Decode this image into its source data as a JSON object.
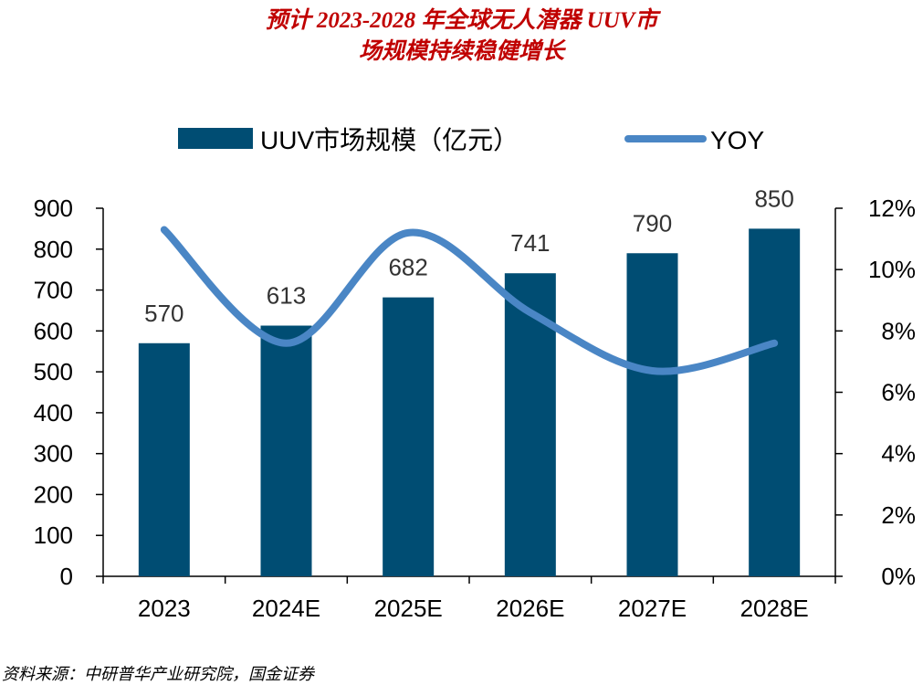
{
  "title": {
    "line1": "预计 2023-2028 年全球无人潜器 UUV市",
    "line2": "场规模持续稳健增长"
  },
  "colors": {
    "bar": "#004d73",
    "line": "#4a86c5",
    "title": "#c00000",
    "axis": "#000000"
  },
  "chart_data": {
    "type": "bar+line",
    "categories": [
      "2023",
      "2024E",
      "2025E",
      "2026E",
      "2027E",
      "2028E"
    ],
    "series": [
      {
        "name": "UUV市场规模（亿元）",
        "type": "bar",
        "axis": "left",
        "values": [
          570,
          613,
          682,
          741,
          790,
          850
        ]
      },
      {
        "name": "YOY",
        "type": "line",
        "axis": "right",
        "values": [
          11.3,
          7.6,
          11.2,
          8.6,
          6.7,
          7.6
        ]
      }
    ],
    "y_left": {
      "min": 0,
      "max": 900,
      "step": 100,
      "ticks": [
        "0",
        "100",
        "200",
        "300",
        "400",
        "500",
        "600",
        "700",
        "800",
        "900"
      ]
    },
    "y_right": {
      "min": 0,
      "max": 12,
      "step": 2,
      "ticks": [
        "0%",
        "2%",
        "4%",
        "6%",
        "8%",
        "10%",
        "12%"
      ]
    },
    "data_labels": [
      "570",
      "613",
      "682",
      "741",
      "790",
      "850"
    ],
    "legend": {
      "bar_label": "UUV市场规模（亿元）",
      "line_label": "YOY",
      "position": "top"
    }
  },
  "source": "资料来源：中研普华产业研究院，国金证券"
}
